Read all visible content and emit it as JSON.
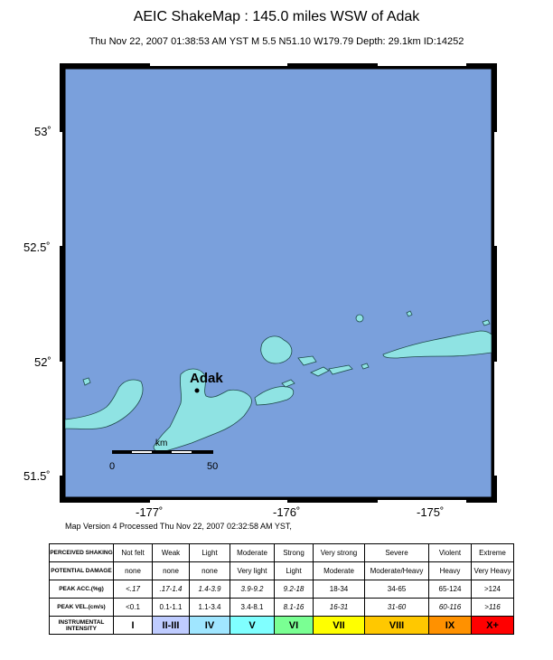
{
  "title": "AEIC ShakeMap : 145.0 miles WSW of Adak",
  "subtitle": "Thu Nov 22, 2007 01:38:53 AM YST   M 5.5   N51.10 W179.79   Depth: 29.1km   ID:14252",
  "map": {
    "lat_labels": [
      "53˚",
      "52.5˚",
      "52˚",
      "51.5˚"
    ],
    "lon_labels": [
      "-177˚",
      "-176˚",
      "-175˚"
    ],
    "city_label": "Adak",
    "scale_label": "km",
    "scale_ticks": [
      "0",
      "50"
    ],
    "colors": {
      "ocean": "#7aa0dc",
      "land": "#8fe3e3",
      "frame": "#000000"
    }
  },
  "version_line": "Map Version 4 Processed Thu Nov 22, 2007 02:32:58 AM YST,",
  "legend": {
    "rows": [
      {
        "label": "PERCEIVED SHAKING",
        "cells": [
          "Not felt",
          "Weak",
          "Light",
          "Moderate",
          "Strong",
          "Very strong",
          "Severe",
          "Violent",
          "Extreme"
        ]
      },
      {
        "label": "POTENTIAL DAMAGE",
        "cells": [
          "none",
          "none",
          "none",
          "Very light",
          "Light",
          "Moderate",
          "Moderate/Heavy",
          "Heavy",
          "Very Heavy"
        ]
      },
      {
        "label": "PEAK ACC.(%g)",
        "cells": [
          "<.17",
          ".17-1.4",
          "1.4-3.9",
          "3.9-9.2",
          "9.2-18",
          "18-34",
          "34-65",
          "65-124",
          ">124"
        ]
      },
      {
        "label": "PEAK VEL.(cm/s)",
        "cells": [
          "<0.1",
          "0.1-1.1",
          "1.1-3.4",
          "3.4-8.1",
          "8.1-16",
          "16-31",
          "31-60",
          "60-116",
          ">116"
        ]
      },
      {
        "label": "INSTRUMENTAL INTENSITY",
        "cells": [
          "I",
          "II-III",
          "IV",
          "V",
          "VI",
          "VII",
          "VIII",
          "IX",
          "X+"
        ]
      }
    ],
    "intensity_colors": [
      "#ffffff",
      "#bfccff",
      "#a0e6ff",
      "#80ffff",
      "#7aff93",
      "#ffff00",
      "#ffc800",
      "#ff9100",
      "#ff0000"
    ]
  }
}
